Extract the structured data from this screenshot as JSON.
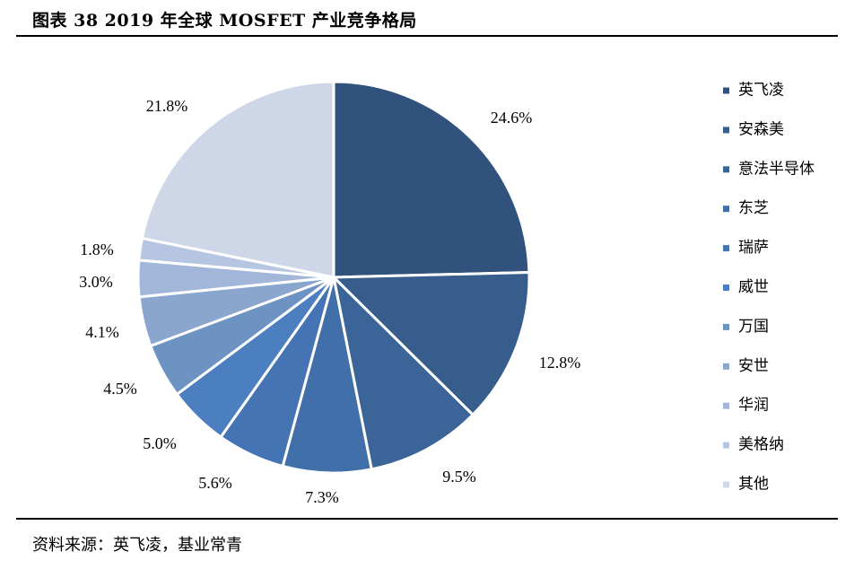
{
  "header": {
    "title": "图表 38 2019 年全球 MOSFET 产业竞争格局"
  },
  "footer": {
    "source": "资料来源：英飞凌，基业常青"
  },
  "chart_data": {
    "type": "pie",
    "title": "图表 38 2019 年全球 MOSFET 产业竞争格局",
    "legend_position": "right",
    "slices": [
      {
        "name": "英飞凌",
        "value": 24.6,
        "label": "24.6%",
        "color": "#30527c"
      },
      {
        "name": "安森美",
        "value": 12.8,
        "label": "12.8%",
        "color": "#375d8d"
      },
      {
        "name": "意法半导体",
        "value": 9.5,
        "label": "9.5%",
        "color": "#3b6499"
      },
      {
        "name": "东芝",
        "value": 7.3,
        "label": "7.3%",
        "color": "#416fa9"
      },
      {
        "name": "瑞萨",
        "value": 5.6,
        "label": "5.6%",
        "color": "#4474b3"
      },
      {
        "name": "威世",
        "value": 5.0,
        "label": "5.0%",
        "color": "#4b7fc0"
      },
      {
        "name": "万国",
        "value": 4.5,
        "label": "4.5%",
        "color": "#6d93c3"
      },
      {
        "name": "安世",
        "value": 4.1,
        "label": "4.1%",
        "color": "#8aa6cf"
      },
      {
        "name": "华润",
        "value": 3.0,
        "label": "3.0%",
        "color": "#a2b6d9"
      },
      {
        "name": "美格纳",
        "value": 1.8,
        "label": "1.8%",
        "color": "#b6c6e2"
      },
      {
        "name": "其他",
        "value": 21.8,
        "label": "21.8%",
        "color": "#cdd7e8"
      }
    ]
  }
}
